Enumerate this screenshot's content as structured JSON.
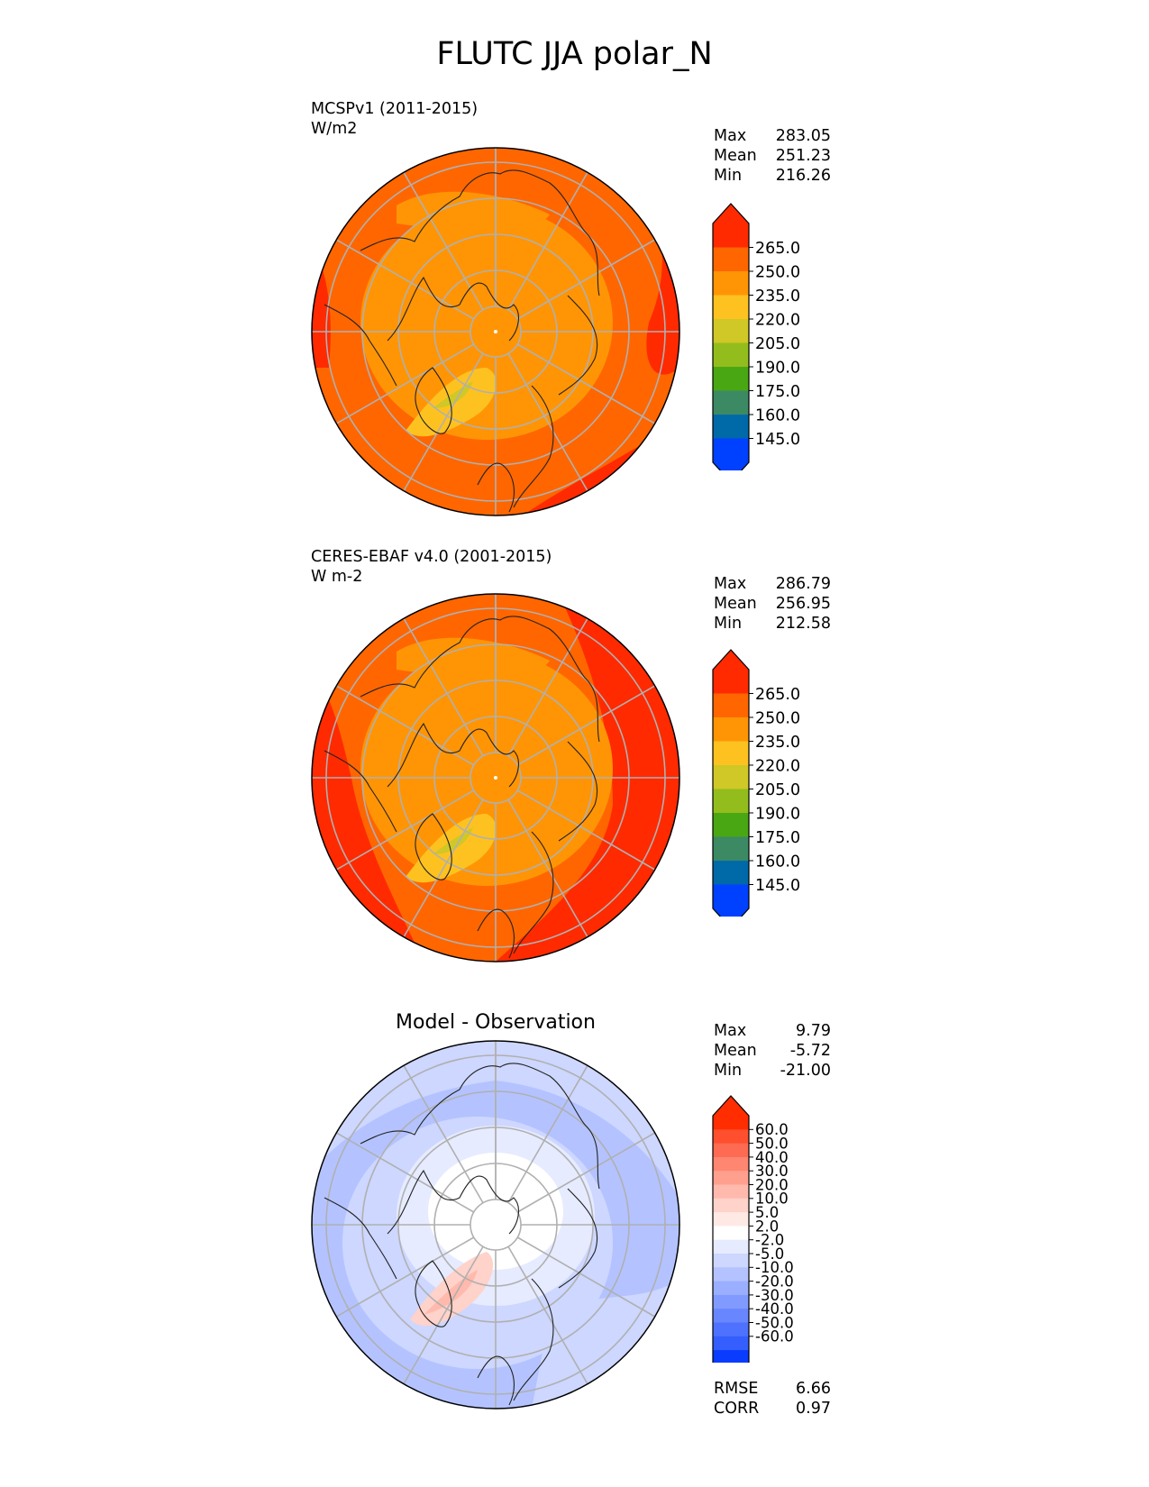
{
  "title": "FLUTC JJA polar_N",
  "panels": [
    {
      "id": "model",
      "title_line1": "MCSPv1 (2011-2015)",
      "title_line2": "W/m2",
      "stats": [
        {
          "label": "Max",
          "value": "283.05"
        },
        {
          "label": "Mean",
          "value": "251.23"
        },
        {
          "label": "Min",
          "value": "216.26"
        }
      ],
      "field": "model"
    },
    {
      "id": "obs",
      "title_line1": "CERES-EBAF v4.0 (2001-2015)",
      "title_line2": "W m-2",
      "stats": [
        {
          "label": "Max",
          "value": "286.79"
        },
        {
          "label": "Mean",
          "value": "256.95"
        },
        {
          "label": "Min",
          "value": "212.58"
        }
      ],
      "field": "obs"
    },
    {
      "id": "diff",
      "center_title": "Model - Observation",
      "stats": [
        {
          "label": "Max",
          "value": "9.79"
        },
        {
          "label": "Mean",
          "value": "-5.72"
        },
        {
          "label": "Min",
          "value": "-21.00"
        }
      ],
      "metrics": [
        {
          "label": "RMSE",
          "value": "6.66"
        },
        {
          "label": "CORR",
          "value": "0.97"
        }
      ],
      "field": "diff"
    }
  ],
  "colorbars": {
    "abs": {
      "ticks": [
        "265.0",
        "250.0",
        "235.0",
        "220.0",
        "205.0",
        "190.0",
        "175.0",
        "160.0",
        "145.0"
      ],
      "colors_top_to_bottom": [
        "#ff2a00",
        "#ff6600",
        "#ff9505",
        "#fec220",
        "#cfc826",
        "#93bd1c",
        "#4aa714",
        "#3c8a63",
        "#006aa8",
        "#0040ff"
      ]
    },
    "diff": {
      "ticks": [
        "60.0",
        "50.0",
        "40.0",
        "30.0",
        "20.0",
        "10.0",
        "5.0",
        "2.0",
        "-2.0",
        "-5.0",
        "-10.0",
        "-20.0",
        "-30.0",
        "-40.0",
        "-50.0",
        "-60.0"
      ],
      "colors_top_to_bottom": [
        "#ff2d00",
        "#ff4f2f",
        "#ff6a52",
        "#ff8670",
        "#ffa08f",
        "#ffbaad",
        "#ffd2ca",
        "#ffe9e5",
        "#ffffff",
        "#e6ebff",
        "#cdd7ff",
        "#b4c3ff",
        "#9aafff",
        "#819aff",
        "#6886ff",
        "#4e72ff",
        "#355eff",
        "#0a3cff"
      ]
    }
  },
  "chart_data": {
    "type": "heatmap",
    "projection": "north polar stereographic",
    "variable": "FLUTC",
    "season": "JJA",
    "panels": [
      {
        "name": "MCSPv1 (2011-2015)",
        "units": "W/m2",
        "max": 283.05,
        "mean": 251.23,
        "min": 216.26
      },
      {
        "name": "CERES-EBAF v4.0 (2001-2015)",
        "units": "W m-2",
        "max": 286.79,
        "mean": 256.95,
        "min": 212.58
      },
      {
        "name": "Model - Observation",
        "max": 9.79,
        "mean": -5.72,
        "min": -21.0,
        "rmse": 6.66,
        "corr": 0.97
      }
    ],
    "abs_levels": [
      145,
      160,
      175,
      190,
      205,
      220,
      235,
      250,
      265
    ],
    "diff_levels": [
      -60,
      -50,
      -40,
      -30,
      -20,
      -10,
      -5,
      -2,
      2,
      5,
      10,
      20,
      30,
      40,
      50,
      60
    ]
  }
}
